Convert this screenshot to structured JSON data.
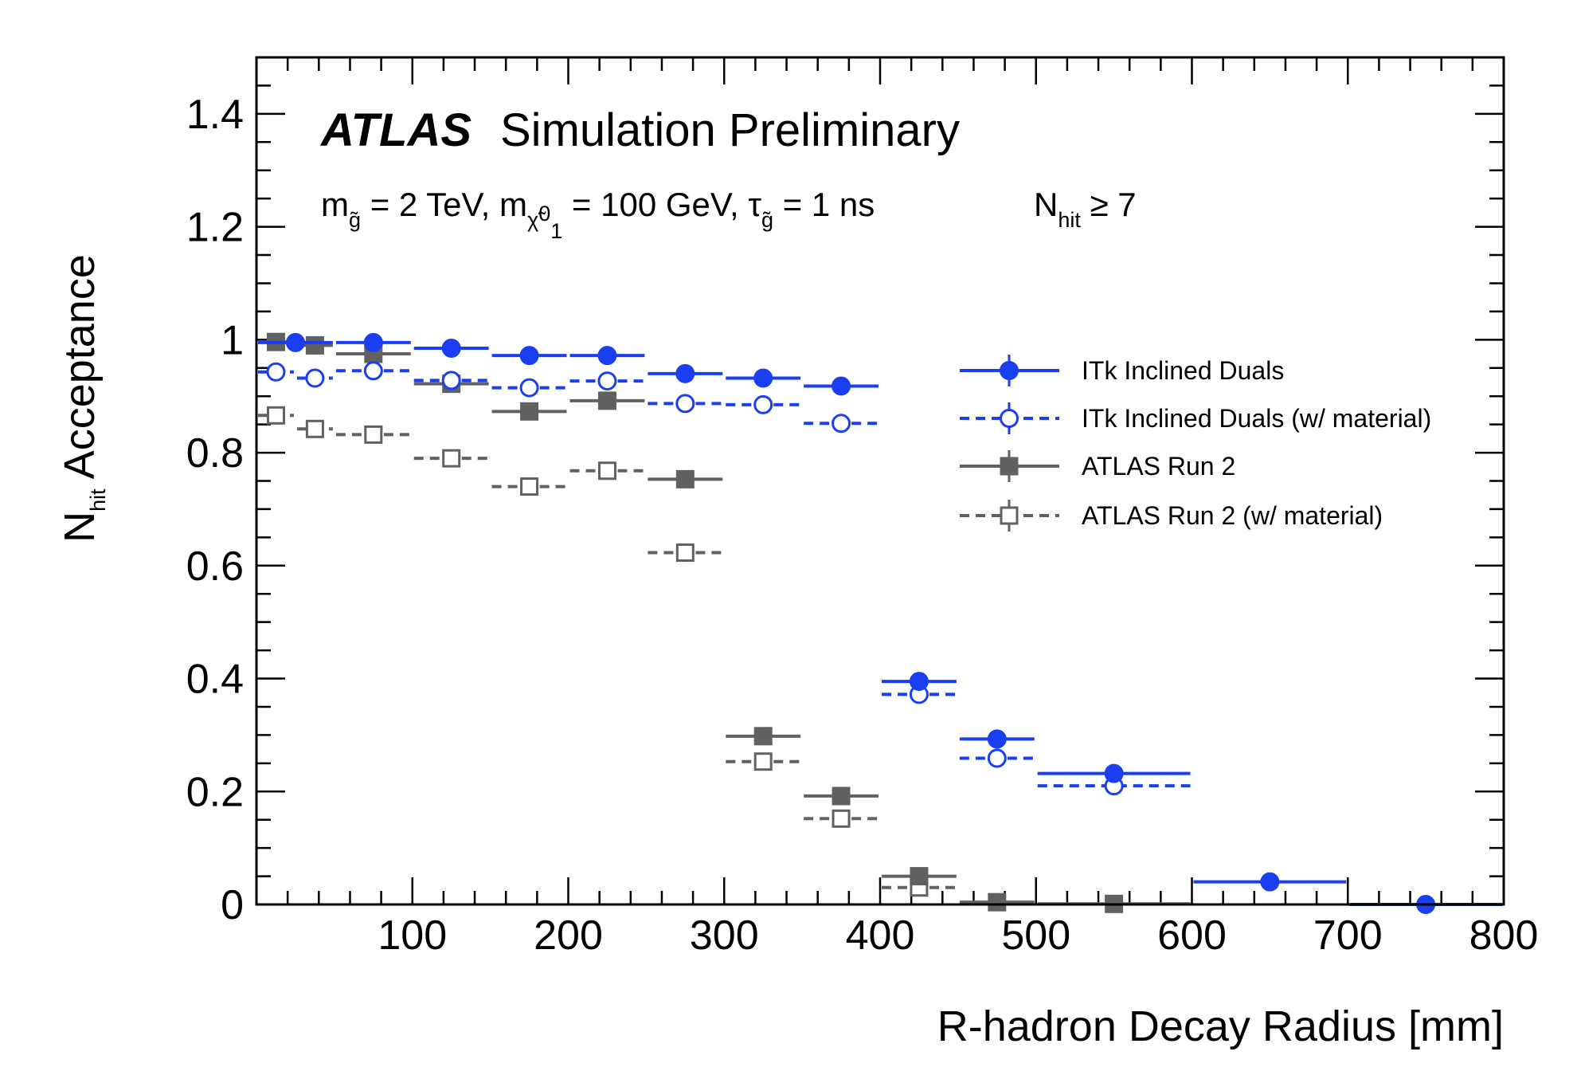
{
  "chart_data": {
    "type": "scatter",
    "experiment_label": "ATLAS",
    "status_label": "Simulation Preliminary",
    "info_line": {
      "parts": [
        {
          "t": "m",
          "s": "n"
        },
        {
          "t": "g̃",
          "s": "sub"
        },
        {
          "t": " = 2 TeV, m",
          "s": "n"
        },
        {
          "t": "χ̃",
          "s": "sub"
        },
        {
          "t": "0",
          "s": "supsub"
        },
        {
          "t": "1",
          "s": "subsub"
        },
        {
          "t": " = 100 GeV, τ",
          "s": "n"
        },
        {
          "t": "g̃",
          "s": "sub"
        },
        {
          "t": " = 1 ns",
          "s": "n"
        }
      ]
    },
    "selection": {
      "main": "N",
      "sub": "hit",
      "rest": " ≥ 7"
    },
    "xlabel": "R-hadron Decay Radius [mm]",
    "ylabel": {
      "main": "N",
      "sub": "hit",
      "rest": " Acceptance"
    },
    "xlim": [
      0,
      800
    ],
    "ylim": [
      0,
      1.5
    ],
    "x_ticks": [
      100,
      200,
      300,
      400,
      500,
      600,
      700,
      800
    ],
    "y_ticks": [
      {
        "value": 0,
        "label": "0"
      },
      {
        "value": 0.2,
        "label": "0.2"
      },
      {
        "value": 0.4,
        "label": "0.4"
      },
      {
        "value": 0.6,
        "label": "0.6"
      },
      {
        "value": 0.8,
        "label": "0.8"
      },
      {
        "value": 1.0,
        "label": "1"
      },
      {
        "value": 1.2,
        "label": "1.2"
      },
      {
        "value": 1.4,
        "label": "1.4"
      }
    ],
    "legend_position": "right",
    "series": [
      {
        "name": "ITk Inclined Duals",
        "color": "#1a3ff0",
        "marker": "filled-circle",
        "line": "solid",
        "bins": [
          {
            "lo": 0,
            "hi": 50,
            "y": 0.995
          },
          {
            "lo": 50,
            "hi": 100,
            "y": 0.995
          },
          {
            "lo": 100,
            "hi": 150,
            "y": 0.985
          },
          {
            "lo": 150,
            "hi": 200,
            "y": 0.972
          },
          {
            "lo": 200,
            "hi": 250,
            "y": 0.972
          },
          {
            "lo": 250,
            "hi": 300,
            "y": 0.94
          },
          {
            "lo": 300,
            "hi": 350,
            "y": 0.932
          },
          {
            "lo": 350,
            "hi": 400,
            "y": 0.918
          },
          {
            "lo": 400,
            "hi": 450,
            "y": 0.395
          },
          {
            "lo": 450,
            "hi": 500,
            "y": 0.293
          },
          {
            "lo": 500,
            "hi": 600,
            "y": 0.232
          },
          {
            "lo": 600,
            "hi": 700,
            "y": 0.04
          },
          {
            "lo": 700,
            "hi": 800,
            "y": 0.0
          }
        ]
      },
      {
        "name": "ITk Inclined Duals (w/ material)",
        "color": "#1a3ff0",
        "marker": "open-circle",
        "line": "dashed",
        "bins": [
          {
            "lo": 0,
            "hi": 25,
            "y": 0.943
          },
          {
            "lo": 25,
            "hi": 50,
            "y": 0.932
          },
          {
            "lo": 50,
            "hi": 100,
            "y": 0.945
          },
          {
            "lo": 100,
            "hi": 150,
            "y": 0.928
          },
          {
            "lo": 150,
            "hi": 200,
            "y": 0.915
          },
          {
            "lo": 200,
            "hi": 250,
            "y": 0.927
          },
          {
            "lo": 250,
            "hi": 300,
            "y": 0.887
          },
          {
            "lo": 300,
            "hi": 350,
            "y": 0.885
          },
          {
            "lo": 350,
            "hi": 400,
            "y": 0.852
          },
          {
            "lo": 400,
            "hi": 450,
            "y": 0.372
          },
          {
            "lo": 450,
            "hi": 500,
            "y": 0.259
          },
          {
            "lo": 500,
            "hi": 600,
            "y": 0.21
          }
        ]
      },
      {
        "name": "ATLAS Run 2",
        "color": "#616161",
        "marker": "filled-square",
        "line": "solid",
        "bins": [
          {
            "lo": 0,
            "hi": 25,
            "y": 0.996
          },
          {
            "lo": 25,
            "hi": 50,
            "y": 0.99
          },
          {
            "lo": 50,
            "hi": 100,
            "y": 0.975
          },
          {
            "lo": 100,
            "hi": 150,
            "y": 0.922
          },
          {
            "lo": 150,
            "hi": 200,
            "y": 0.873
          },
          {
            "lo": 200,
            "hi": 250,
            "y": 0.892
          },
          {
            "lo": 250,
            "hi": 300,
            "y": 0.753
          },
          {
            "lo": 300,
            "hi": 350,
            "y": 0.298
          },
          {
            "lo": 350,
            "hi": 400,
            "y": 0.192
          },
          {
            "lo": 400,
            "hi": 450,
            "y": 0.05
          },
          {
            "lo": 450,
            "hi": 500,
            "y": 0.004
          },
          {
            "lo": 500,
            "hi": 600,
            "y": 0.001
          }
        ]
      },
      {
        "name": "ATLAS Run 2 (w/ material)",
        "color": "#616161",
        "marker": "open-square",
        "line": "dashed",
        "bins": [
          {
            "lo": 0,
            "hi": 25,
            "y": 0.866
          },
          {
            "lo": 25,
            "hi": 50,
            "y": 0.842
          },
          {
            "lo": 50,
            "hi": 100,
            "y": 0.832
          },
          {
            "lo": 100,
            "hi": 150,
            "y": 0.79
          },
          {
            "lo": 150,
            "hi": 200,
            "y": 0.74
          },
          {
            "lo": 200,
            "hi": 250,
            "y": 0.768
          },
          {
            "lo": 250,
            "hi": 300,
            "y": 0.623
          },
          {
            "lo": 300,
            "hi": 350,
            "y": 0.253
          },
          {
            "lo": 350,
            "hi": 400,
            "y": 0.152
          },
          {
            "lo": 400,
            "hi": 450,
            "y": 0.03
          }
        ]
      }
    ]
  }
}
